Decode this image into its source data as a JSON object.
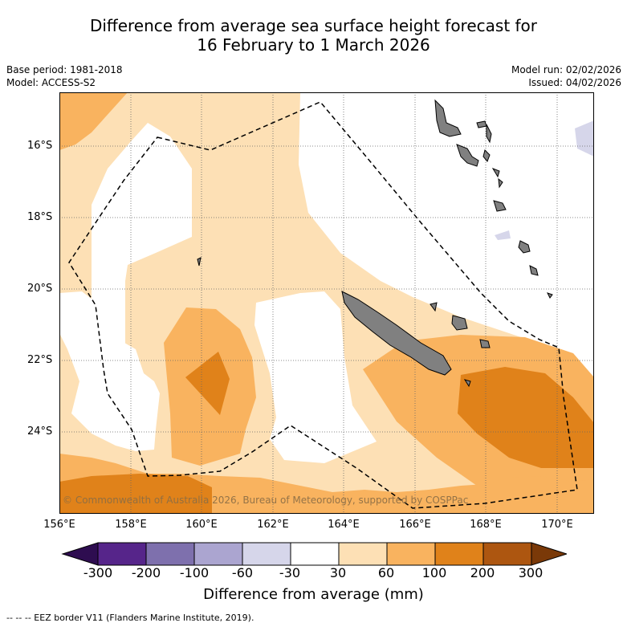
{
  "title": {
    "line1": "Difference from average sea surface height forecast for",
    "line2": "16 February to 1 March 2026"
  },
  "meta_left": {
    "base_period": "Base period: 1981-2018",
    "model": "Model: ACCESS-S2"
  },
  "meta_right": {
    "model_run": "Model run: 02/02/2026",
    "issued": "Issued: 04/02/2026"
  },
  "latitude_labels": [
    "16°S",
    "18°S",
    "20°S",
    "22°S",
    "24°S"
  ],
  "longitude_labels": [
    "156°E",
    "158°E",
    "160°E",
    "162°E",
    "164°E",
    "166°E",
    "168°E",
    "170°E"
  ],
  "copyright": "© Commonwealth of Australia 2026, Bureau of Meteorology, supported by COSPPac",
  "colorbar": {
    "ticks": [
      "-300",
      "-200",
      "-100",
      "-60",
      "-30",
      "30",
      "60",
      "100",
      "200",
      "300"
    ],
    "colors": [
      "#2e0d50",
      "#56258a",
      "#7e70ad",
      "#aba5d0",
      "#d6d6ea",
      "#ffffff",
      "#fde0b5",
      "#f9b35f",
      "#e0821a",
      "#ad5610",
      "#7a3908"
    ],
    "label": "Difference from average (mm)"
  },
  "legend_note": "--  --  -- EEZ border V11 (Flanders Marine Institute, 2019)."
}
